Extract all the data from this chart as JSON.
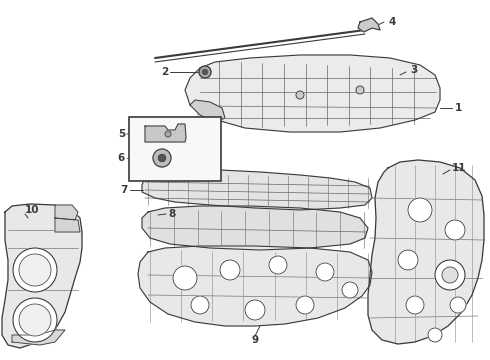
{
  "background_color": "#ffffff",
  "line_color": "#3a3a3a",
  "label_color": "#000000",
  "fig_width": 4.9,
  "fig_height": 3.6,
  "dpi": 100
}
